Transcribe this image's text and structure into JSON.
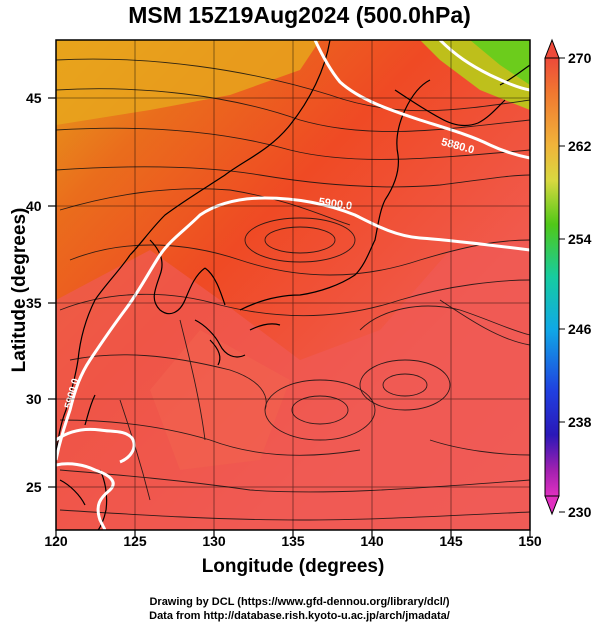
{
  "title": "MSM 15Z19Aug2024 (500.0hPa)",
  "x_axis": {
    "label": "Longitude (degrees)",
    "ticks": [
      "120",
      "125",
      "130",
      "135",
      "140",
      "145",
      "150"
    ],
    "range": [
      120,
      150
    ]
  },
  "y_axis": {
    "label": "Latitude  (degrees)",
    "ticks": [
      "25",
      "30",
      "35",
      "40",
      "45"
    ],
    "range": [
      22.4,
      47.6
    ]
  },
  "colorbar": {
    "ticks": [
      "270",
      "262",
      "254",
      "246",
      "238",
      "230"
    ],
    "range": [
      230,
      270
    ]
  },
  "contours": [
    {
      "label": "5880.0"
    },
    {
      "label": "5900.0"
    },
    {
      "label": "5900.0"
    }
  ],
  "credits": {
    "line1": "Drawing by DCL (https://www.gfd-dennou.org/library/dcl/)",
    "line2": "Data from http://database.rish.kyoto-u.ac.jp/arch/jmadata/"
  },
  "chart_data": {
    "type": "heatmap",
    "title": "MSM 15Z19Aug2024 (500.0hPa)",
    "xlabel": "Longitude (degrees)",
    "ylabel": "Latitude  (degrees)",
    "xlim": [
      120,
      150
    ],
    "ylim": [
      22.4,
      47.6
    ],
    "color_scale": {
      "min": 230,
      "max": 270,
      "ticks": [
        230,
        238,
        246,
        254,
        262,
        270
      ]
    },
    "overlays": [
      "streamlines",
      "geopotential height contours",
      "coastlines"
    ]
  }
}
